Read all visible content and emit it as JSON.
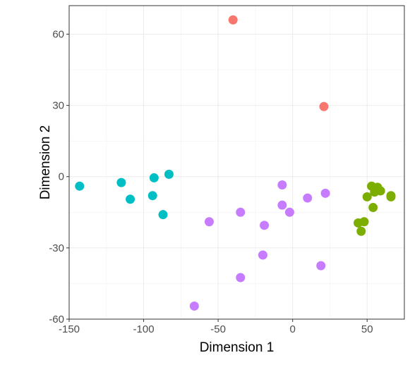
{
  "chart_data": {
    "type": "scatter",
    "title": "",
    "xlabel": "Dimension 1",
    "ylabel": "Dimension 2",
    "xlim": [
      -150,
      75
    ],
    "ylim": [
      -60,
      72
    ],
    "xticks": [
      -150,
      -100,
      -50,
      0,
      50
    ],
    "xtick_labels": [
      "-150",
      "-100",
      "-50",
      "0",
      "50"
    ],
    "yticks": [
      -60,
      -30,
      0,
      30,
      60
    ],
    "ytick_labels": [
      "-60",
      "-30",
      "0",
      "30",
      "60"
    ],
    "grid": true,
    "legend": "none",
    "series": [
      {
        "color": "#F8766D",
        "points": [
          [
            -40,
            66
          ],
          [
            21,
            29.5
          ]
        ]
      },
      {
        "color": "#7CAE00",
        "points": [
          [
            53,
            -4
          ],
          [
            57,
            -4.5
          ],
          [
            59,
            -6
          ],
          [
            55,
            -6.5
          ],
          [
            66,
            -8
          ],
          [
            66,
            -8.5
          ],
          [
            50,
            -8.5
          ],
          [
            54,
            -13
          ],
          [
            48,
            -19
          ],
          [
            44,
            -19.5
          ],
          [
            46,
            -23
          ]
        ]
      },
      {
        "color": "#00BFC4",
        "points": [
          [
            -143,
            -4
          ],
          [
            -115,
            -2.5
          ],
          [
            -93,
            -0.5
          ],
          [
            -83,
            1
          ],
          [
            -109,
            -9.5
          ],
          [
            -94,
            -8
          ],
          [
            -87,
            -16
          ]
        ]
      },
      {
        "color": "#C77CFF",
        "points": [
          [
            -7,
            -3.5
          ],
          [
            22,
            -7
          ],
          [
            10,
            -9
          ],
          [
            -7,
            -12
          ],
          [
            -2,
            -15
          ],
          [
            -35,
            -15
          ],
          [
            -56,
            -19
          ],
          [
            -19,
            -20.5
          ],
          [
            -20,
            -33
          ],
          [
            19,
            -37.5
          ],
          [
            -35,
            -42.5
          ],
          [
            -66,
            -54.5
          ]
        ]
      }
    ]
  }
}
